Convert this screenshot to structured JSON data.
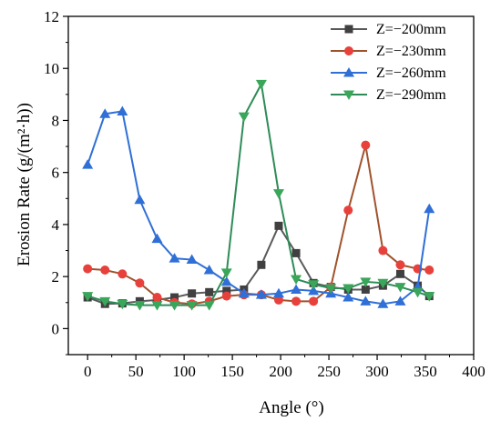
{
  "chart_data": {
    "type": "line",
    "xlabel": "Angle (°)",
    "ylabel": "Erosion Rate (g/(m²·h))",
    "xlim": [
      -20,
      400
    ],
    "ylim": [
      -1,
      12
    ],
    "xticks": [
      0,
      50,
      100,
      150,
      200,
      250,
      300,
      350,
      400
    ],
    "yticks": [
      0,
      2,
      4,
      6,
      8,
      10,
      12
    ],
    "grid": false,
    "legend_position": "top-right",
    "series": [
      {
        "name": "Z=−200mm",
        "color": "#404040",
        "line_color": "#595959",
        "marker": "square",
        "x": [
          0,
          18,
          36,
          54,
          72,
          90,
          108,
          126,
          144,
          162,
          180,
          198,
          216,
          234,
          252,
          270,
          288,
          306,
          324,
          342,
          354
        ],
        "y": [
          1.2,
          0.95,
          0.97,
          1.05,
          1.1,
          1.2,
          1.35,
          1.4,
          1.45,
          1.5,
          2.45,
          3.95,
          2.9,
          1.75,
          1.6,
          1.5,
          1.5,
          1.65,
          2.1,
          1.65,
          1.25
        ]
      },
      {
        "name": "Z=−230mm",
        "color": "#e8413c",
        "line_color": "#a0522d",
        "marker": "circle",
        "x": [
          0,
          18,
          36,
          54,
          72,
          90,
          108,
          126,
          144,
          162,
          180,
          198,
          216,
          234,
          252,
          270,
          288,
          306,
          324,
          342,
          354
        ],
        "y": [
          2.3,
          2.25,
          2.1,
          1.75,
          1.2,
          1.0,
          0.95,
          1.05,
          1.25,
          1.3,
          1.3,
          1.1,
          1.05,
          1.05,
          1.6,
          4.55,
          7.05,
          3.0,
          2.45,
          2.3,
          2.25
        ]
      },
      {
        "name": "Z=−260mm",
        "color": "#2f6fd6",
        "line_color": "#2f6fd6",
        "marker": "triangle-up",
        "x": [
          0,
          18,
          36,
          54,
          72,
          90,
          108,
          126,
          144,
          162,
          180,
          198,
          216,
          234,
          252,
          270,
          288,
          306,
          324,
          342,
          354
        ],
        "y": [
          6.3,
          8.25,
          8.35,
          4.95,
          3.45,
          2.7,
          2.65,
          2.25,
          1.8,
          1.35,
          1.3,
          1.35,
          1.5,
          1.45,
          1.35,
          1.2,
          1.05,
          0.95,
          1.05,
          1.6,
          4.6
        ]
      },
      {
        "name": "Z=−290mm",
        "color": "#3aa65a",
        "line_color": "#2e8b57",
        "marker": "triangle-down",
        "x": [
          0,
          18,
          36,
          54,
          72,
          90,
          108,
          126,
          144,
          162,
          180,
          198,
          216,
          234,
          252,
          270,
          288,
          306,
          324,
          342,
          354
        ],
        "y": [
          1.25,
          1.05,
          0.95,
          0.9,
          0.9,
          0.9,
          0.9,
          0.9,
          2.15,
          8.15,
          9.4,
          5.2,
          1.9,
          1.7,
          1.55,
          1.55,
          1.8,
          1.75,
          1.6,
          1.4,
          1.25
        ]
      }
    ]
  }
}
